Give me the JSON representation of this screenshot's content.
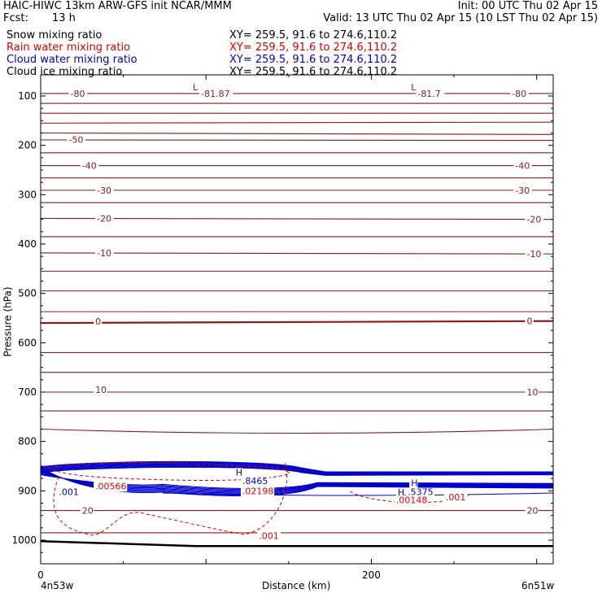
{
  "header": {
    "title": "HAIC-HIWC 13km ARW-GFS init   NCAR/MMM",
    "init": "Init: 00 UTC Thu 02 Apr 15",
    "fcst_label": "Fcst:",
    "fcst_value": "13 h",
    "valid": "Valid: 13 UTC Thu 02 Apr 15 (10 LST Thu 02 Apr 15)"
  },
  "fields": [
    {
      "name": "Snow mixing ratio",
      "xy": "XY= 259.5, 91.6 to 274.6,110.2",
      "color": "#000000"
    },
    {
      "name": "Rain water mixing ratio",
      "xy": "XY= 259.5, 91.6 to 274.6,110.2",
      "color": "#dd0000"
    },
    {
      "name": "Cloud water mixing ratio",
      "xy": "XY= 259.5, 91.6 to 274.6,110.2",
      "color": "#0000cc"
    },
    {
      "name": "Cloud ice mixing ratio",
      "xy": "XY= 259.5, 91.6 to 274.6,110.2",
      "color": "#000000"
    }
  ],
  "chart_data": {
    "type": "contour cross-section",
    "ylabel": "Pressure (hPa)",
    "xlabel": "Distance (km)",
    "y_ticks": [
      100,
      200,
      300,
      400,
      500,
      600,
      700,
      800,
      900,
      1000
    ],
    "x_ticks": [
      0,
      200
    ],
    "x_end_labels": [
      "4n53w",
      "6n51w"
    ],
    "x_range": [
      0,
      310
    ],
    "y_range": [
      50,
      1050
    ],
    "temperature_color": "#8b1a1a",
    "temperature_isotherms": [
      {
        "p_left": 95,
        "p_right": 95
      },
      {
        "p_left": 115,
        "p_right": 115
      },
      {
        "p_left": 135,
        "p_right": 135
      },
      {
        "p_left": 155,
        "p_right": 153
      },
      {
        "p_left": 175,
        "p_right": 178
      },
      {
        "p_left": 189,
        "p_right": 190
      },
      {
        "p_left": 215,
        "p_right": 215
      },
      {
        "p_left": 241,
        "p_right": 241
      },
      {
        "p_left": 266,
        "p_right": 266
      },
      {
        "p_left": 291,
        "p_right": 291
      },
      {
        "p_left": 316,
        "p_right": 316
      },
      {
        "p_left": 348,
        "p_right": 350
      },
      {
        "p_left": 385,
        "p_right": 385
      },
      {
        "p_left": 418,
        "p_right": 420
      },
      {
        "p_left": 455,
        "p_right": 455
      },
      {
        "p_left": 495,
        "p_right": 495
      },
      {
        "p_left": 537,
        "p_right": 537
      },
      {
        "p_left": 560,
        "p_right": 556,
        "bold": true
      },
      {
        "p_left": 620,
        "p_right": 620
      },
      {
        "p_left": 660,
        "p_right": 660
      },
      {
        "p_left": 700,
        "p_right": 700
      },
      {
        "p_left": 738,
        "p_right": 738
      },
      {
        "p_left": 775,
        "p_right": 775
      },
      {
        "p_left": 940,
        "p_right": 940
      },
      {
        "p_left": 985,
        "p_right": 985
      }
    ],
    "temperature_labels": [
      {
        "text": "-80",
        "x": 18,
        "p": 95
      },
      {
        "text": "-81.87",
        "x": 97,
        "p": 95
      },
      {
        "text": "-81.7",
        "x": 228,
        "p": 95
      },
      {
        "text": "-80",
        "x": 285,
        "p": 95
      },
      {
        "text": "-50",
        "x": 17,
        "p": 188
      },
      {
        "text": "-40",
        "x": 25,
        "p": 241
      },
      {
        "text": "-40",
        "x": 287,
        "p": 241
      },
      {
        "text": "-30",
        "x": 34,
        "p": 291
      },
      {
        "text": "-30",
        "x": 287,
        "p": 291
      },
      {
        "text": "-20",
        "x": 34,
        "p": 348
      },
      {
        "text": "-20",
        "x": 294,
        "p": 350
      },
      {
        "text": "-10",
        "x": 34,
        "p": 418
      },
      {
        "text": "-10",
        "x": 294,
        "p": 420
      },
      {
        "text": "0",
        "x": 33,
        "p": 557
      },
      {
        "text": "0",
        "x": 294,
        "p": 556
      },
      {
        "text": "10",
        "x": 33,
        "p": 695
      },
      {
        "text": "10",
        "x": 294,
        "p": 700
      },
      {
        "text": "20",
        "x": 25,
        "p": 940
      },
      {
        "text": "20",
        "x": 294,
        "p": 940
      }
    ],
    "lows": [
      {
        "label": "L",
        "x": 92,
        "p": 82
      },
      {
        "label": "L",
        "x": 224,
        "p": 82
      }
    ],
    "highs": [
      {
        "label": "H",
        "x": 118,
        "p": 862
      },
      {
        "label": "H",
        "x": 224,
        "p": 884
      },
      {
        "label": "H",
        "x": 216,
        "p": 903
      }
    ],
    "cloud_water_labels": [
      {
        "text": ".001",
        "x": 11,
        "p": 902
      },
      {
        "text": ".8465",
        "x": 122,
        "p": 880
      },
      {
        "text": ".5375",
        "x": 222,
        "p": 902
      }
    ],
    "rain_labels": [
      {
        "text": ".00566",
        "x": 33,
        "p": 890
      },
      {
        "text": ".02198",
        "x": 122,
        "p": 900
      },
      {
        "text": ".00148",
        "x": 215,
        "p": 918
      },
      {
        "text": ".001",
        "x": 245,
        "p": 913
      },
      {
        "text": ".001",
        "x": 132,
        "p": 991
      }
    ]
  }
}
